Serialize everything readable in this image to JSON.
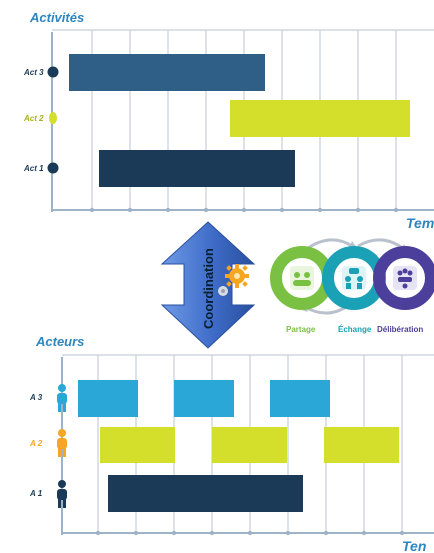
{
  "colors": {
    "blue_title": "#2e86c1",
    "navy": "#1b3a57",
    "steel": "#2f5f86",
    "yellow": "#d4df2c",
    "cyan": "#2aa7d6",
    "orange": "#f5a623",
    "green": "#7ac143",
    "teal": "#1aa1b6",
    "purple": "#4b3f9b",
    "arrow": "#4a7bd1"
  },
  "activities": {
    "title": "Activités",
    "axis_label": "Tem",
    "rows": [
      {
        "label": "Act 3",
        "color": "#1b3a57",
        "label_color": "#1b3a57"
      },
      {
        "label": "Act 2",
        "color": "#d4df2c",
        "label_color": "#a6b018"
      },
      {
        "label": "Act 1",
        "color": "#1b3a57",
        "label_color": "#1b3a57"
      }
    ]
  },
  "coordination": {
    "label": "Coordination"
  },
  "process": {
    "steps": [
      {
        "label": "Partage",
        "color": "#7ac143"
      },
      {
        "label": "Échange",
        "color": "#1aa1b6"
      },
      {
        "label": "Délibération",
        "color": "#4b3f9b"
      }
    ]
  },
  "actors": {
    "title": "Acteurs",
    "axis_label": "Ten",
    "rows": [
      {
        "label": "A 3",
        "color": "#2aa7d6"
      },
      {
        "label": "A 2",
        "color": "#f5a623"
      },
      {
        "label": "A 1",
        "color": "#1b3a57"
      }
    ]
  }
}
